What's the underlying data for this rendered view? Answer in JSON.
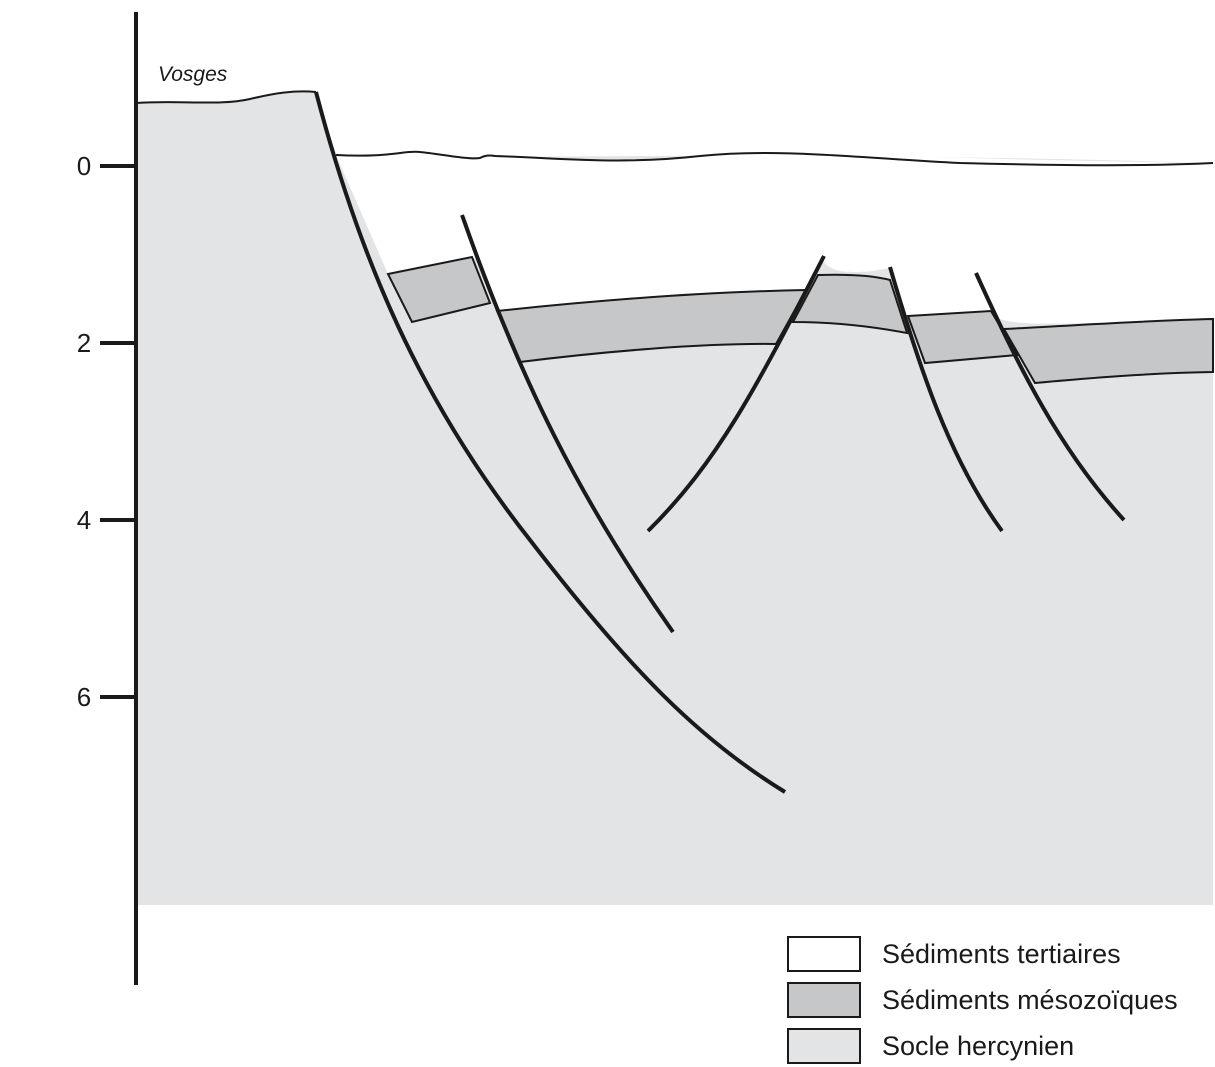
{
  "diagram": {
    "place_label": "Vosges",
    "depth_axis": {
      "ticks": [
        {
          "value": 0,
          "label": "0"
        },
        {
          "value": 2,
          "label": "2"
        },
        {
          "value": 4,
          "label": "4"
        },
        {
          "value": 6,
          "label": "6"
        }
      ]
    },
    "colors": {
      "tertiaire": "#ffffff",
      "mesozoique": "#c6c7c9",
      "socle": "#e3e4e6",
      "line": "#1a1a1a"
    },
    "legend": [
      {
        "label": "Sédiments tertiaires",
        "color": "#ffffff"
      },
      {
        "label": "Sédiments mésozoïques",
        "color": "#c6c7c9"
      },
      {
        "label": "Socle hercynien",
        "color": "#e3e4e6"
      }
    ]
  }
}
